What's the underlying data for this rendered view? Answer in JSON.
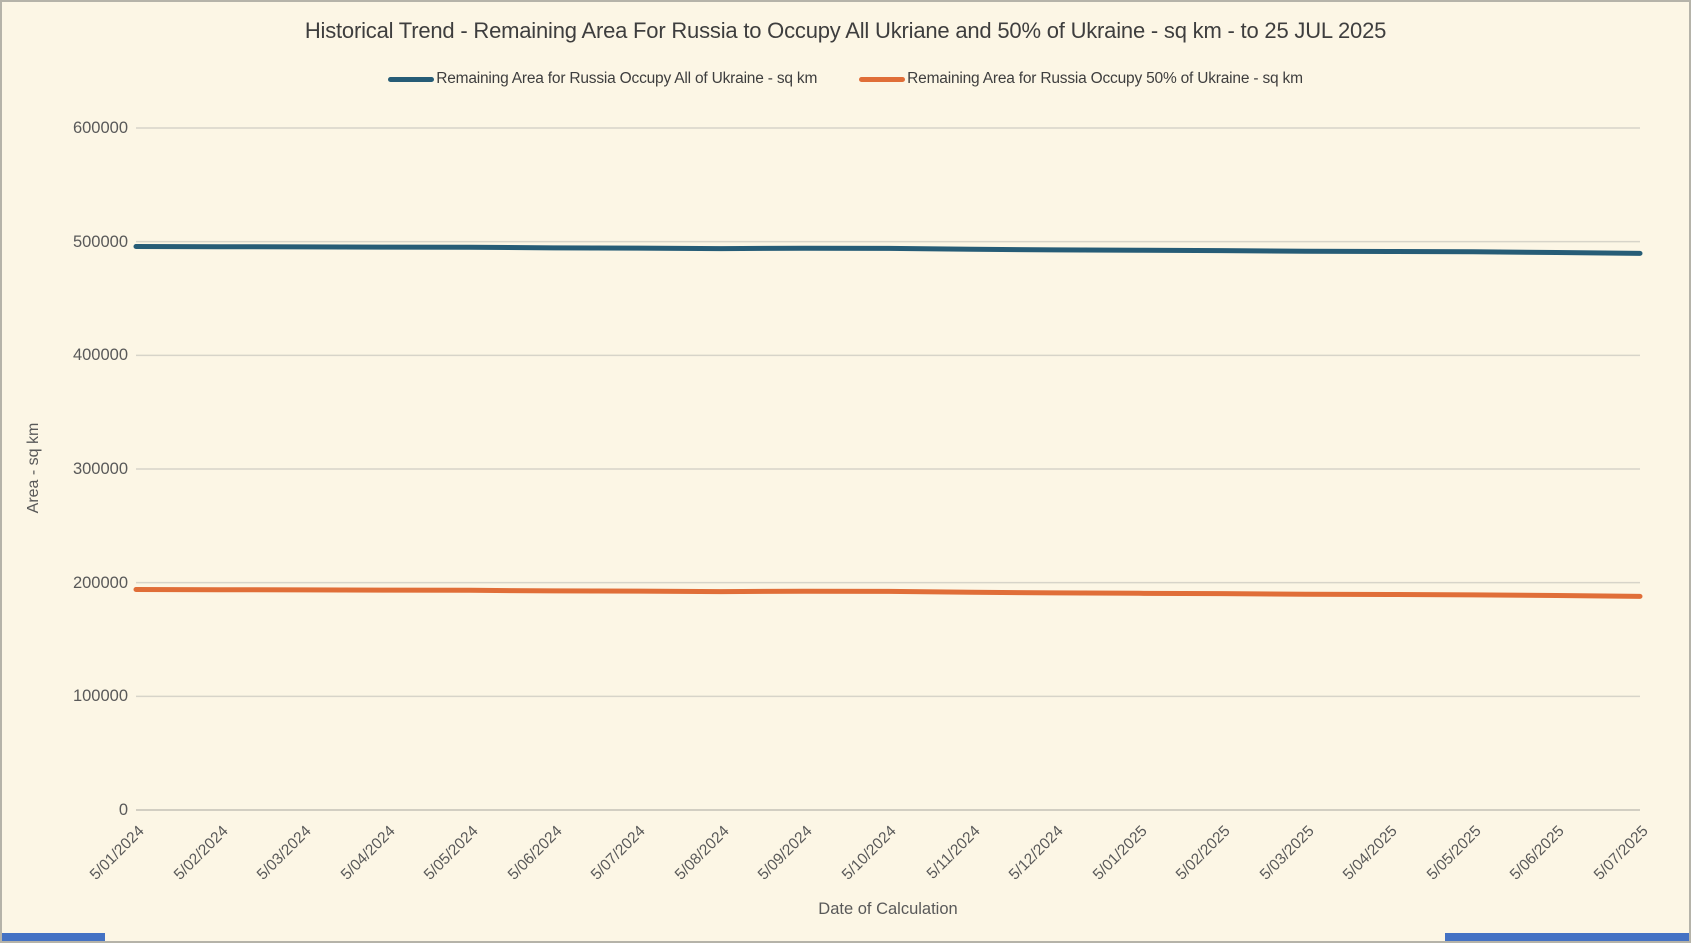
{
  "page": {
    "background": "#FCF6E5",
    "border_color": "#B5B3A9",
    "bottom_strip_color": "#4472C4"
  },
  "chart_data": {
    "type": "line",
    "title": "Historical Trend - Remaining Area For Russia to Occupy All Ukriane and 50% of Ukraine - sq km - to 25 JUL 2025",
    "xlabel": "Date of Calculation",
    "ylabel": "Area - sq km",
    "ylim": [
      0,
      600000
    ],
    "y_ticks": [
      0,
      100000,
      200000,
      300000,
      400000,
      500000,
      600000
    ],
    "grid": true,
    "legend_position": "top",
    "categories": [
      "5/01/2024",
      "5/02/2024",
      "5/03/2024",
      "5/04/2024",
      "5/05/2024",
      "5/06/2024",
      "5/07/2024",
      "5/08/2024",
      "5/09/2024",
      "5/10/2024",
      "5/11/2024",
      "5/12/2024",
      "5/01/2025",
      "5/02/2025",
      "5/03/2025",
      "5/04/2025",
      "5/05/2025",
      "5/06/2025",
      "5/07/2025"
    ],
    "series": [
      {
        "name": "Remaining Area for Russia Occupy All of Ukraine - sq km",
        "color": "#265C76",
        "values": [
          495750,
          495550,
          495400,
          495250,
          495100,
          494500,
          494350,
          493900,
          494250,
          494050,
          493350,
          492750,
          492450,
          492150,
          491650,
          491350,
          491050,
          490450,
          489650
        ]
      },
      {
        "name": "Remaining Area for Russia Occupy 50% of Ukraine - sq km",
        "color": "#E06E38",
        "values": [
          193975,
          193775,
          193625,
          193475,
          193325,
          192725,
          192575,
          192125,
          192475,
          192275,
          191575,
          190975,
          190675,
          190375,
          189875,
          189575,
          189275,
          188675,
          187875
        ]
      }
    ]
  }
}
